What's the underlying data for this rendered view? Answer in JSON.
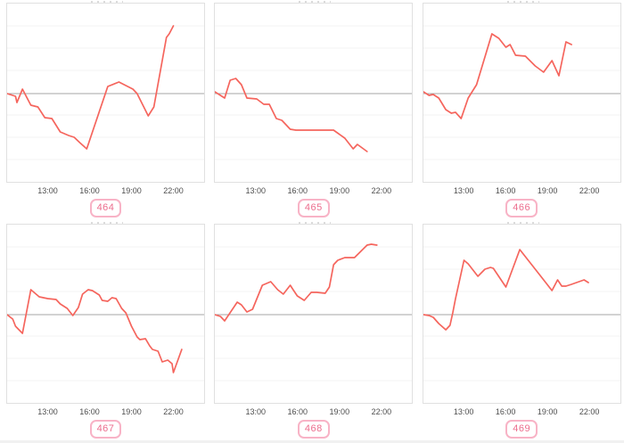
{
  "theme": {
    "line_color": "#f5655d",
    "baseline_color": "#a6a6a6",
    "gridline_color": "#f3f3f3",
    "panel_border_color": "#e0e0e0",
    "tick_label_color": "#4d4d4d",
    "badge_text_color": "#ec6d8d",
    "badge_border_color": "#f8b3c6",
    "background": "#ffffff"
  },
  "chart_data": {
    "type": "line",
    "layout": "2x3-grid",
    "title": "",
    "legend": "none",
    "grid": "horizontal-only",
    "x_axis": {
      "tick_labels": [
        "13:00",
        "16:00",
        "19:00",
        "22:00"
      ],
      "tick_hours": [
        13,
        16,
        19,
        22
      ],
      "range_hours": [
        10.1,
        24.2
      ]
    },
    "y_axis": {
      "labels_visible": false,
      "baseline": 0,
      "estimated_range": [
        -100,
        100
      ]
    },
    "charts": [
      {
        "label": "464",
        "series": [
          [
            10.1,
            0
          ],
          [
            10.7,
            -3
          ],
          [
            10.8,
            -10
          ],
          [
            11.2,
            5
          ],
          [
            11.8,
            -13
          ],
          [
            12.3,
            -15
          ],
          [
            12.8,
            -27
          ],
          [
            13.3,
            -28
          ],
          [
            13.9,
            -43
          ],
          [
            14.5,
            -47
          ],
          [
            14.9,
            -49
          ],
          [
            15.3,
            -55
          ],
          [
            15.8,
            -62
          ],
          [
            17.3,
            8
          ],
          [
            18.1,
            13
          ],
          [
            19.1,
            5
          ],
          [
            19.4,
            0
          ],
          [
            20.2,
            -25
          ],
          [
            20.6,
            -15
          ],
          [
            21.5,
            63
          ],
          [
            21.7,
            67
          ],
          [
            22.0,
            76
          ]
        ]
      },
      {
        "label": "465",
        "series": [
          [
            10.1,
            2
          ],
          [
            10.5,
            -2
          ],
          [
            10.8,
            -5
          ],
          [
            11.2,
            15
          ],
          [
            11.6,
            17
          ],
          [
            12.0,
            10
          ],
          [
            12.4,
            -5
          ],
          [
            13.1,
            -6
          ],
          [
            13.6,
            -12
          ],
          [
            14.0,
            -12
          ],
          [
            14.5,
            -28
          ],
          [
            14.9,
            -30
          ],
          [
            15.5,
            -40
          ],
          [
            15.9,
            -41
          ],
          [
            18.6,
            -41
          ],
          [
            19.4,
            -50
          ],
          [
            20.0,
            -62
          ],
          [
            20.3,
            -57
          ],
          [
            21.0,
            -65
          ]
        ]
      },
      {
        "label": "466",
        "series": [
          [
            10.1,
            2
          ],
          [
            10.5,
            -2
          ],
          [
            10.8,
            -1
          ],
          [
            11.2,
            -5
          ],
          [
            11.7,
            -18
          ],
          [
            12.1,
            -22
          ],
          [
            12.4,
            -21
          ],
          [
            12.8,
            -28
          ],
          [
            13.3,
            -5
          ],
          [
            13.9,
            10
          ],
          [
            15.0,
            67
          ],
          [
            15.5,
            62
          ],
          [
            16.0,
            52
          ],
          [
            16.3,
            55
          ],
          [
            16.7,
            43
          ],
          [
            17.4,
            42
          ],
          [
            18.1,
            31
          ],
          [
            18.7,
            24
          ],
          [
            19.3,
            37
          ],
          [
            19.8,
            20
          ],
          [
            20.3,
            58
          ],
          [
            20.7,
            55
          ]
        ]
      },
      {
        "label": "467",
        "series": [
          [
            10.1,
            0
          ],
          [
            10.5,
            -5
          ],
          [
            10.7,
            -13
          ],
          [
            11.2,
            -21
          ],
          [
            11.8,
            28
          ],
          [
            12.4,
            20
          ],
          [
            13.0,
            18
          ],
          [
            13.6,
            17
          ],
          [
            13.9,
            12
          ],
          [
            14.4,
            7
          ],
          [
            14.8,
            -1
          ],
          [
            15.2,
            8
          ],
          [
            15.5,
            23
          ],
          [
            15.9,
            28
          ],
          [
            16.2,
            27
          ],
          [
            16.7,
            22
          ],
          [
            16.9,
            16
          ],
          [
            17.3,
            15
          ],
          [
            17.6,
            19
          ],
          [
            17.9,
            18
          ],
          [
            18.3,
            7
          ],
          [
            18.6,
            2
          ],
          [
            19.0,
            -13
          ],
          [
            19.4,
            -25
          ],
          [
            19.6,
            -28
          ],
          [
            20.0,
            -27
          ],
          [
            20.3,
            -35
          ],
          [
            20.5,
            -39
          ],
          [
            20.9,
            -41
          ],
          [
            21.2,
            -53
          ],
          [
            21.6,
            -51
          ],
          [
            21.9,
            -55
          ],
          [
            22.0,
            -65
          ],
          [
            22.6,
            -39
          ]
        ]
      },
      {
        "label": "468",
        "series": [
          [
            10.1,
            0
          ],
          [
            10.5,
            -2
          ],
          [
            10.8,
            -7
          ],
          [
            11.7,
            14
          ],
          [
            12.0,
            11
          ],
          [
            12.4,
            3
          ],
          [
            12.8,
            6
          ],
          [
            13.5,
            33
          ],
          [
            14.1,
            37
          ],
          [
            14.6,
            28
          ],
          [
            15.0,
            23
          ],
          [
            15.5,
            33
          ],
          [
            15.7,
            28
          ],
          [
            16.0,
            21
          ],
          [
            16.5,
            16
          ],
          [
            17.0,
            25
          ],
          [
            17.4,
            25
          ],
          [
            18.0,
            24
          ],
          [
            18.3,
            31
          ],
          [
            18.6,
            56
          ],
          [
            18.9,
            61
          ],
          [
            19.4,
            64
          ],
          [
            20.1,
            64
          ],
          [
            21.0,
            78
          ],
          [
            21.3,
            79
          ],
          [
            21.7,
            78
          ]
        ]
      },
      {
        "label": "469",
        "series": [
          [
            10.1,
            0
          ],
          [
            10.5,
            -1
          ],
          [
            10.8,
            -3
          ],
          [
            11.2,
            -10
          ],
          [
            11.7,
            -17
          ],
          [
            12.0,
            -12
          ],
          [
            12.2,
            2
          ],
          [
            12.4,
            18
          ],
          [
            13.0,
            61
          ],
          [
            13.3,
            57
          ],
          [
            14.0,
            43
          ],
          [
            14.5,
            51
          ],
          [
            14.9,
            53
          ],
          [
            15.1,
            52
          ],
          [
            16.0,
            31
          ],
          [
            17.0,
            73
          ],
          [
            17.4,
            65
          ],
          [
            18.2,
            49
          ],
          [
            18.8,
            37
          ],
          [
            19.3,
            27
          ],
          [
            19.7,
            39
          ],
          [
            20.0,
            32
          ],
          [
            20.3,
            32
          ],
          [
            20.7,
            34
          ],
          [
            21.6,
            39
          ],
          [
            21.9,
            36
          ]
        ]
      }
    ]
  }
}
